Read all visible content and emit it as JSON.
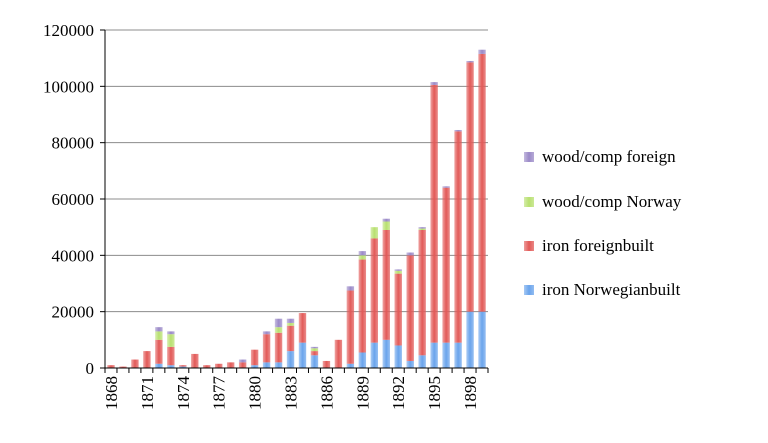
{
  "chart_data": {
    "type": "bar",
    "stacked": true,
    "categories": [
      "1868",
      "1869",
      "1870",
      "1871",
      "1872",
      "1873",
      "1874",
      "1875",
      "1876",
      "1877",
      "1878",
      "1879",
      "1880",
      "1881",
      "1882",
      "1883",
      "1884",
      "1885",
      "1886",
      "1887",
      "1888",
      "1889",
      "1890",
      "1891",
      "1892",
      "1893",
      "1894",
      "1895",
      "1896",
      "1897",
      "1898",
      "1899"
    ],
    "x_tick_labels": [
      "1868",
      "1871",
      "1874",
      "1877",
      "1880",
      "1883",
      "1886",
      "1889",
      "1892",
      "1895",
      "1898"
    ],
    "y_ticks": [
      0,
      20000,
      40000,
      60000,
      80000,
      100000,
      120000
    ],
    "y_tick_labels": [
      "0",
      "20000",
      "40000",
      "60000",
      "80000",
      "100000",
      "120000"
    ],
    "ylim": [
      0,
      120000
    ],
    "grid": "horizontal",
    "legend_position": "right",
    "title": "",
    "xlabel": "",
    "ylabel": "",
    "series": [
      {
        "name": "iron Norwegianbuilt",
        "color": "#6aa4ec",
        "values": [
          0,
          0,
          0,
          0,
          1500,
          1000,
          500,
          0,
          0,
          0,
          0,
          0,
          1000,
          2000,
          2000,
          6000,
          9000,
          4500,
          0,
          0,
          1500,
          5500,
          9000,
          10000,
          8000,
          2500,
          4500,
          9000,
          9000,
          9000,
          20000,
          20000
        ]
      },
      {
        "name": "iron foreignbuilt",
        "color": "#e25a58",
        "values": [
          1000,
          500,
          3000,
          6000,
          8500,
          6500,
          500,
          5000,
          1000,
          1500,
          2000,
          2000,
          5500,
          10000,
          10500,
          9000,
          10500,
          1500,
          2500,
          10000,
          26000,
          33000,
          37000,
          39000,
          25500,
          37500,
          44500,
          91500,
          55000,
          75000,
          88500,
          91500
        ]
      },
      {
        "name": "wood/comp Norway",
        "color": "#b8e070",
        "values": [
          0,
          0,
          0,
          0,
          3000,
          4500,
          0,
          0,
          0,
          0,
          0,
          0,
          0,
          0,
          2000,
          1000,
          0,
          1000,
          0,
          0,
          0,
          1500,
          4000,
          3000,
          1000,
          0,
          500,
          0,
          0,
          0,
          0,
          0
        ]
      },
      {
        "name": "wood/comp foreign",
        "color": "#9b8ac8",
        "values": [
          0,
          0,
          0,
          0,
          1500,
          1000,
          0,
          0,
          0,
          0,
          0,
          1000,
          0,
          1000,
          3000,
          1500,
          0,
          500,
          0,
          0,
          1500,
          1500,
          0,
          1000,
          500,
          1000,
          500,
          1000,
          500,
          500,
          500,
          1500
        ]
      }
    ]
  }
}
